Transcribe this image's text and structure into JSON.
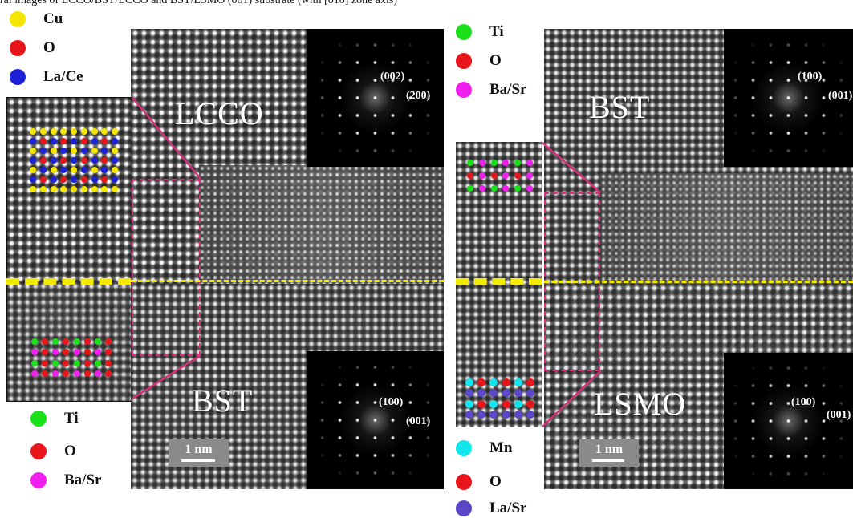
{
  "caption_top": "ral images of LCCO/BST/LCCO and BST/LSMO (001) substrate (with [010] zone axis)",
  "left_panel": {
    "legend_top": [
      {
        "label": "Cu",
        "color": "#f5e600"
      },
      {
        "label": "O",
        "color": "#e8161b"
      },
      {
        "label": "La/Ce",
        "color": "#1d22d8"
      }
    ],
    "legend_bottom": [
      {
        "label": "Ti",
        "color": "#19e019"
      },
      {
        "label": "O",
        "color": "#e8161b"
      },
      {
        "label": "Ba/Sr",
        "color": "#f01ff0"
      }
    ],
    "upper_phase": "LCCO",
    "lower_phase": "BST",
    "fft_upper_labels": [
      "(002)",
      "(200)"
    ],
    "fft_lower_labels": [
      "(100)",
      "(001)"
    ],
    "scale_bar": "1 nm"
  },
  "right_panel": {
    "legend_top": [
      {
        "label": "Ti",
        "color": "#19e019"
      },
      {
        "label": "O",
        "color": "#e8161b"
      },
      {
        "label": "Ba/Sr",
        "color": "#f01ff0"
      }
    ],
    "legend_bottom": [
      {
        "label": "Mn",
        "color": "#11e6ee"
      },
      {
        "label": "O",
        "color": "#e8161b"
      },
      {
        "label": "La/Sr",
        "color": "#5a48c8"
      }
    ],
    "upper_phase": "BST",
    "lower_phase": "LSMO",
    "fft_upper_labels": [
      "(100)",
      "(001)"
    ],
    "fft_lower_labels": [
      "(100)",
      "(001)"
    ],
    "scale_bar": "1 nm"
  },
  "colors": {
    "interface_line": "#f2ea00",
    "zoom_box": "#d6307a"
  }
}
